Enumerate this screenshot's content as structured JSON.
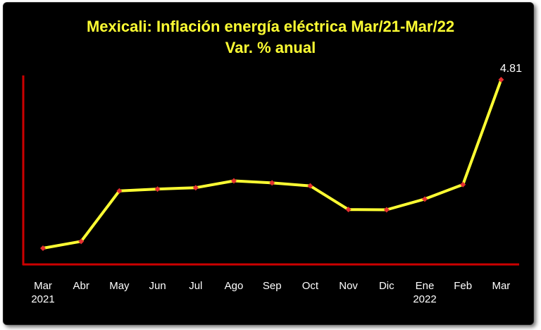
{
  "chart_data": {
    "type": "line",
    "title": "Mexicali: Inflación energía eléctrica Mar/21-Mar/22",
    "subtitle": "Var. % anual",
    "categories": [
      [
        "Mar",
        "2021"
      ],
      [
        "Abr"
      ],
      [
        "May"
      ],
      [
        "Jun"
      ],
      [
        "Jul"
      ],
      [
        "Ago"
      ],
      [
        "Sep"
      ],
      [
        "Oct"
      ],
      [
        "Nov"
      ],
      [
        "Dic"
      ],
      [
        "Ene",
        "2022"
      ],
      [
        "Feb"
      ],
      [
        "Mar"
      ]
    ],
    "series": [
      {
        "values": [
          -2.6,
          -2.3,
          -0.08,
          0.0,
          0.06,
          0.36,
          0.27,
          0.14,
          -0.9,
          -0.91,
          -0.44,
          0.2,
          4.81
        ],
        "data_labels": [
          null,
          null,
          null,
          null,
          null,
          null,
          null,
          null,
          null,
          null,
          null,
          null,
          "4.81"
        ]
      }
    ],
    "colors": {
      "background": "#000000",
      "title": "#ffff33",
      "line": "#ffff33",
      "marker": "#e53030",
      "axis": "#cc0000",
      "text": "#ffffff"
    },
    "grid": false,
    "legend": "none"
  }
}
